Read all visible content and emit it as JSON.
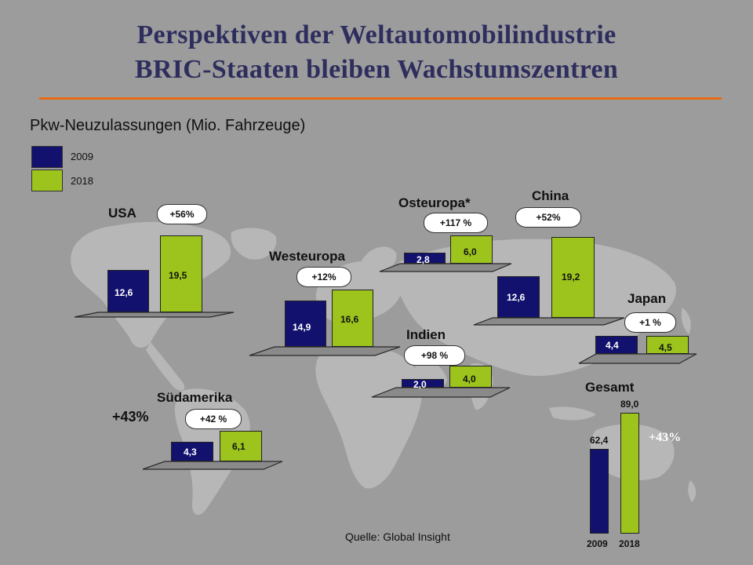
{
  "title_line1": "Perspektiven der Weltautomobilindustrie",
  "title_line2": "BRIC-Staaten bleiben Wachstumszentren",
  "subtitle": "Pkw-Neuzulassungen (Mio. Fahrzeuge)",
  "legend": [
    {
      "label": "2009",
      "color": "#12126e"
    },
    {
      "label": "2018",
      "color": "#9cc41c"
    }
  ],
  "source": "Quelle: Global Insight",
  "colors": {
    "bar_2009": "#12126e",
    "bar_2018": "#9cc41c",
    "accent_rule": "#e86a12",
    "title": "#2e2e5e"
  },
  "chart_data": [
    {
      "type": "bar",
      "series_names": [
        "2009",
        "2018"
      ],
      "regions": [
        {
          "id": "usa",
          "name": "USA",
          "growth": "+56%",
          "v2009": "12,6",
          "v2018": "19,5"
        },
        {
          "id": "westeuropa",
          "name": "Westeuropa",
          "growth": "+12%",
          "v2009": "14,9",
          "v2018": "16,6"
        },
        {
          "id": "osteuropa",
          "name": "Osteuropa*",
          "growth": "+117 %",
          "v2009": "2,8",
          "v2018": "6,0"
        },
        {
          "id": "china",
          "name": "China",
          "growth": "+52%",
          "v2009": "12,6",
          "v2018": "19,2"
        },
        {
          "id": "japan",
          "name": "Japan",
          "growth": "+1 %",
          "v2009": "4,4",
          "v2018": "4,5"
        },
        {
          "id": "indien",
          "name": "Indien",
          "growth": "+98 %",
          "v2009": "2,0",
          "v2018": "4,0"
        },
        {
          "id": "suedamerika",
          "name": "Südamerika",
          "growth": "+42 %",
          "v2009": "4,3",
          "v2018": "6,1"
        }
      ],
      "extra_label": "+43%"
    },
    {
      "type": "bar",
      "title": "Gesamt",
      "categories": [
        "2009",
        "2018"
      ],
      "values": [
        62.4,
        89.0
      ],
      "value_labels": [
        "62,4",
        "89,0"
      ],
      "growth": "+43%"
    }
  ]
}
